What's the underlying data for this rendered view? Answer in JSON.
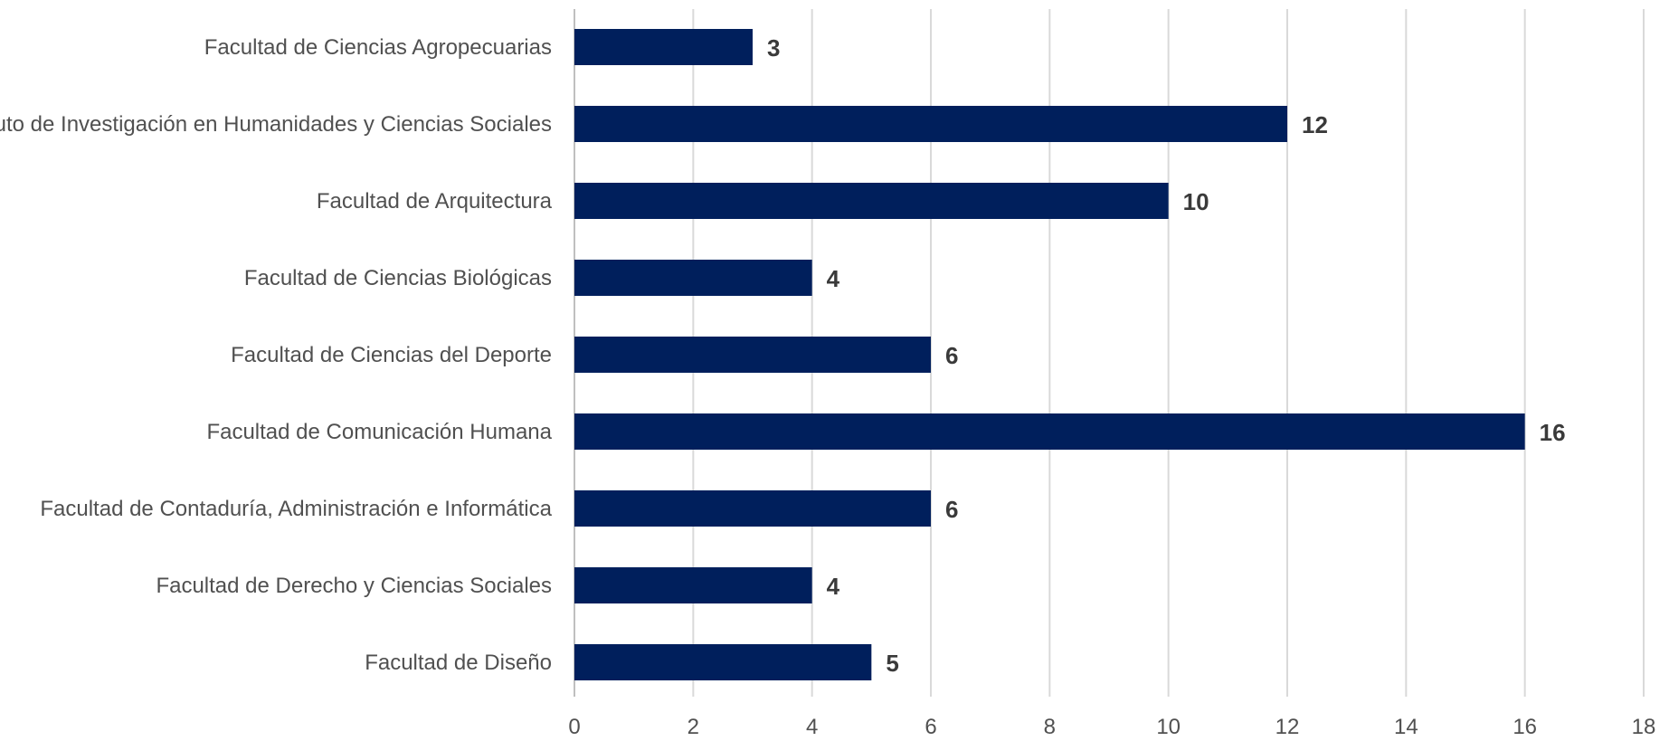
{
  "chart_data": {
    "type": "bar",
    "orientation": "horizontal",
    "categories": [
      "Facultad de Ciencias Agropecuarias",
      "Instituto de Investigación en Humanidades y Ciencias Sociales",
      "Facultad de Arquitectura",
      "Facultad de Ciencias Biológicas",
      "Facultad de Ciencias del Deporte",
      "Facultad de Comunicación Humana",
      "Facultad de Contaduría, Administración e Informática",
      "Facultad de Derecho y Ciencias Sociales",
      "Facultad de Diseño"
    ],
    "values": [
      3,
      12,
      10,
      4,
      6,
      16,
      6,
      4,
      5
    ],
    "xlim": [
      0,
      18
    ],
    "xticks": [
      0,
      2,
      4,
      6,
      8,
      10,
      12,
      14,
      16,
      18
    ],
    "title": "",
    "xlabel": "",
    "ylabel": "",
    "grid": "vertical",
    "legend": "none",
    "colors": {
      "bar": "#001f5c",
      "label": "#505050",
      "data_label": "#3a3a3a",
      "grid": "#d9d9d9"
    }
  }
}
